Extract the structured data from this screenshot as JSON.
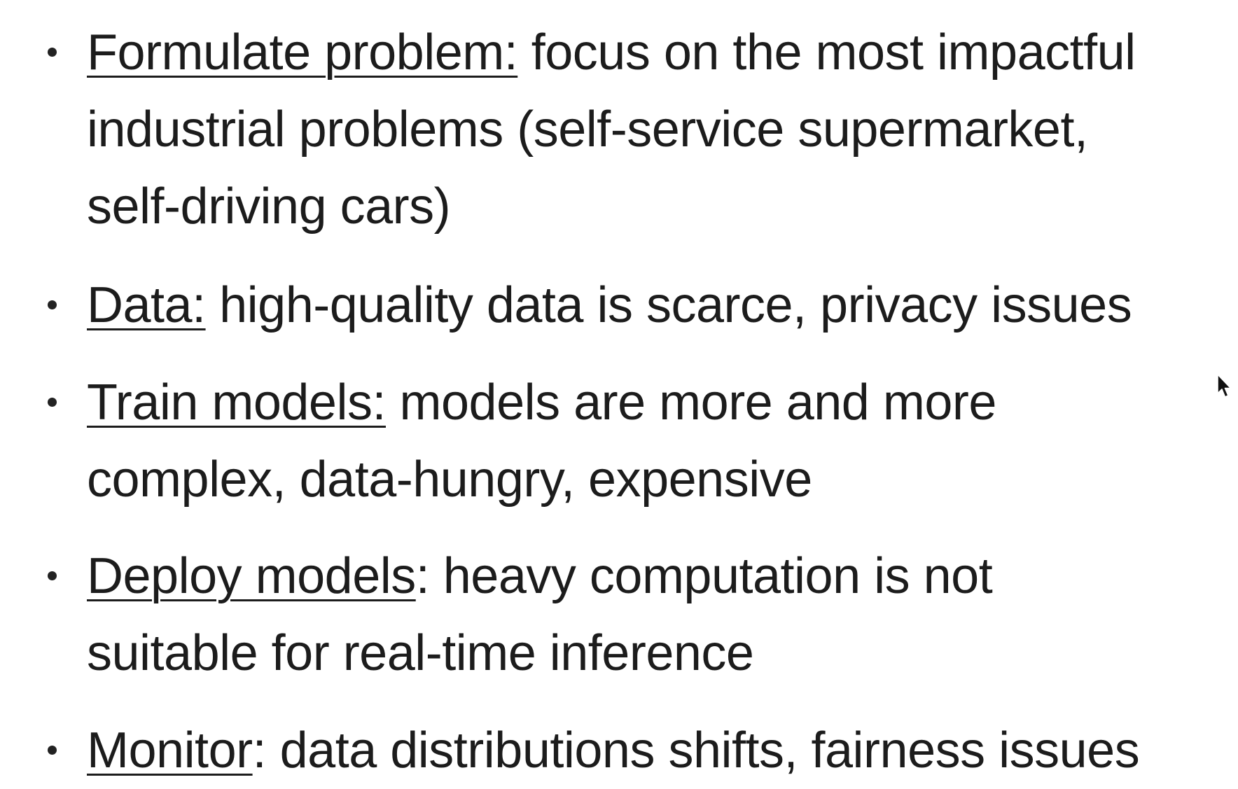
{
  "bullets": [
    {
      "term": "Formulate problem:",
      "lines": [
        "focus on the most impactful",
        "industrial problems (self-service supermarket,",
        "self-driving cars)"
      ]
    },
    {
      "term": "Data:",
      "lines": [
        "high-quality data is scarce, privacy issues"
      ]
    },
    {
      "term": "Train models:",
      "lines": [
        "models are more and more",
        "complex, data-hungry, expensive"
      ]
    },
    {
      "term": "Deploy models",
      "term_suffix": ":",
      "lines": [
        "heavy computation is not",
        "suitable for real-time inference"
      ]
    },
    {
      "term": "Monitor",
      "term_suffix": ":",
      "lines": [
        "data distributions shifts, fairness issues"
      ]
    }
  ]
}
